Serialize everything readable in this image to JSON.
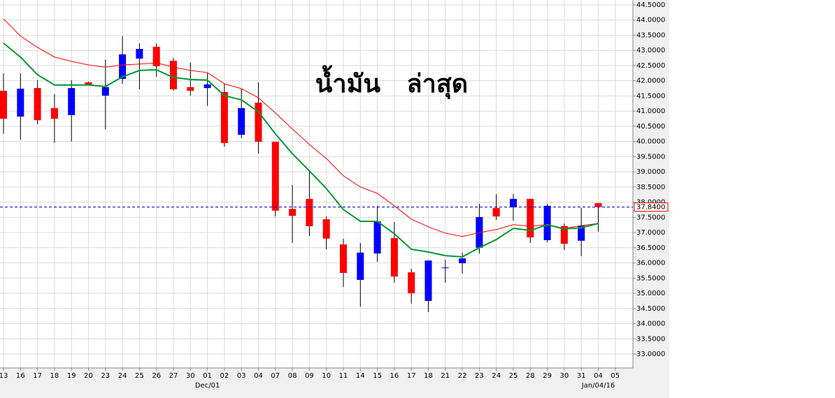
{
  "chart_data": {
    "type": "candlestick",
    "title": "น้ำมัน   ล่าสุด",
    "categories": [
      "13",
      "16",
      "17",
      "18",
      "19",
      "20",
      "23",
      "24",
      "25",
      "26",
      "27",
      "30",
      "01",
      "02",
      "03",
      "04",
      "07",
      "08",
      "09",
      "10",
      "11",
      "14",
      "15",
      "16",
      "17",
      "18",
      "21",
      "22",
      "23",
      "24",
      "25",
      "28",
      "29",
      "30",
      "31",
      "04",
      "05"
    ],
    "period_labels": [
      null,
      null,
      null,
      null,
      null,
      null,
      null,
      null,
      null,
      null,
      null,
      null,
      "Dec/01",
      null,
      null,
      null,
      null,
      null,
      null,
      null,
      null,
      null,
      null,
      null,
      null,
      null,
      null,
      null,
      null,
      null,
      null,
      null,
      null,
      null,
      null,
      "Jan/04/16",
      null
    ],
    "open": [
      41.67,
      40.82,
      41.76,
      41.1,
      40.87,
      41.95,
      41.51,
      42.06,
      42.73,
      43.12,
      42.66,
      41.79,
      41.76,
      41.63,
      40.22,
      41.28,
      39.99,
      37.78,
      38.11,
      37.44,
      36.61,
      35.44,
      36.31,
      36.82,
      35.69,
      34.75,
      35.83,
      35.99,
      36.5,
      37.81,
      37.83,
      38.11,
      36.75,
      37.21,
      36.73,
      37.97,
      null
    ],
    "high": [
      42.25,
      42.25,
      42.02,
      41.56,
      42.02,
      41.97,
      42.7,
      43.47,
      43.23,
      43.23,
      42.75,
      42.6,
      42.25,
      41.9,
      41.74,
      41.95,
      39.99,
      38.57,
      39.03,
      37.53,
      36.8,
      36.66,
      37.88,
      37.35,
      35.81,
      36.08,
      36.1,
      36.34,
      37.95,
      38.27,
      38.27,
      38.11,
      37.95,
      37.3,
      37.81,
      37.97,
      null
    ],
    "low": [
      40.25,
      40.06,
      40.57,
      39.95,
      40.0,
      41.85,
      40.4,
      41.9,
      41.72,
      42.13,
      41.67,
      41.51,
      41.17,
      39.83,
      40.11,
      39.6,
      37.53,
      36.66,
      36.89,
      36.45,
      35.21,
      34.56,
      36.04,
      35.35,
      34.66,
      34.38,
      35.35,
      35.65,
      36.31,
      37.42,
      37.39,
      36.66,
      36.68,
      36.43,
      36.22,
      37.03,
      null
    ],
    "close": [
      40.75,
      41.74,
      40.7,
      40.75,
      41.76,
      41.88,
      41.79,
      42.87,
      43.05,
      42.48,
      41.72,
      41.67,
      41.88,
      39.95,
      41.1,
      39.99,
      37.72,
      37.55,
      37.21,
      36.8,
      35.67,
      36.34,
      37.37,
      35.55,
      35.0,
      36.08,
      35.85,
      36.15,
      37.51,
      37.53,
      38.11,
      36.84,
      37.88,
      36.63,
      37.23,
      37.84,
      null
    ],
    "up_color": "#0000ff",
    "down_color": "#ff0000",
    "lines": [
      {
        "color": "#ff0000",
        "width": 1,
        "values": [
          44.04,
          43.47,
          43.1,
          42.78,
          42.64,
          42.52,
          42.45,
          42.52,
          42.55,
          42.59,
          42.45,
          42.34,
          42.27,
          41.9,
          41.74,
          41.44,
          40.94,
          40.41,
          39.9,
          39.44,
          38.87,
          38.5,
          38.29,
          37.88,
          37.44,
          37.19,
          36.98,
          36.87,
          37.0,
          37.1,
          37.26,
          37.21,
          37.26,
          37.14,
          37.23,
          37.3,
          null
        ]
      },
      {
        "color": "#009933",
        "width": 2,
        "values": [
          43.24,
          42.78,
          42.2,
          41.86,
          41.86,
          41.86,
          41.81,
          42.13,
          42.34,
          42.36,
          42.11,
          42.04,
          42.02,
          41.51,
          41.37,
          40.98,
          40.25,
          39.6,
          39.03,
          38.45,
          37.76,
          37.37,
          37.37,
          36.96,
          36.45,
          36.36,
          36.24,
          36.2,
          36.5,
          36.77,
          37.14,
          37.07,
          37.26,
          37.12,
          37.16,
          37.3,
          null
        ]
      }
    ],
    "last_price": {
      "value": 37.84,
      "label": "37.8400"
    },
    "ylim": [
      32.54,
      44.66
    ],
    "yticks": [
      {
        "value": 33.0,
        "label": "33.0000"
      },
      {
        "value": 33.5,
        "label": "33.5000"
      },
      {
        "value": 34.0,
        "label": "34.0000"
      },
      {
        "value": 34.5,
        "label": "34.5000"
      },
      {
        "value": 35.0,
        "label": "35.0000"
      },
      {
        "value": 35.5,
        "label": "35.5000"
      },
      {
        "value": 36.0,
        "label": "36.0000"
      },
      {
        "value": 36.5,
        "label": "36.5000"
      },
      {
        "value": 37.0,
        "label": "37.0000"
      },
      {
        "value": 37.5,
        "label": "37.5000"
      },
      {
        "value": 38.0,
        "label": "38.0000"
      },
      {
        "value": 38.5,
        "label": "38.5000"
      },
      {
        "value": 39.0,
        "label": "39.0000"
      },
      {
        "value": 39.5,
        "label": "39.5000"
      },
      {
        "value": 40.0,
        "label": "40.0000"
      },
      {
        "value": 40.5,
        "label": "40.5000"
      },
      {
        "value": 41.0,
        "label": "41.0000"
      },
      {
        "value": 41.5,
        "label": "41.5000"
      },
      {
        "value": 42.0,
        "label": "42.0000"
      },
      {
        "value": 42.5,
        "label": "42.5000"
      },
      {
        "value": 43.0,
        "label": "43.0000"
      },
      {
        "value": 43.5,
        "label": "43.5000"
      },
      {
        "value": 44.0,
        "label": "44.0000"
      },
      {
        "value": 44.5,
        "label": "44.5000"
      }
    ],
    "grid": true
  }
}
